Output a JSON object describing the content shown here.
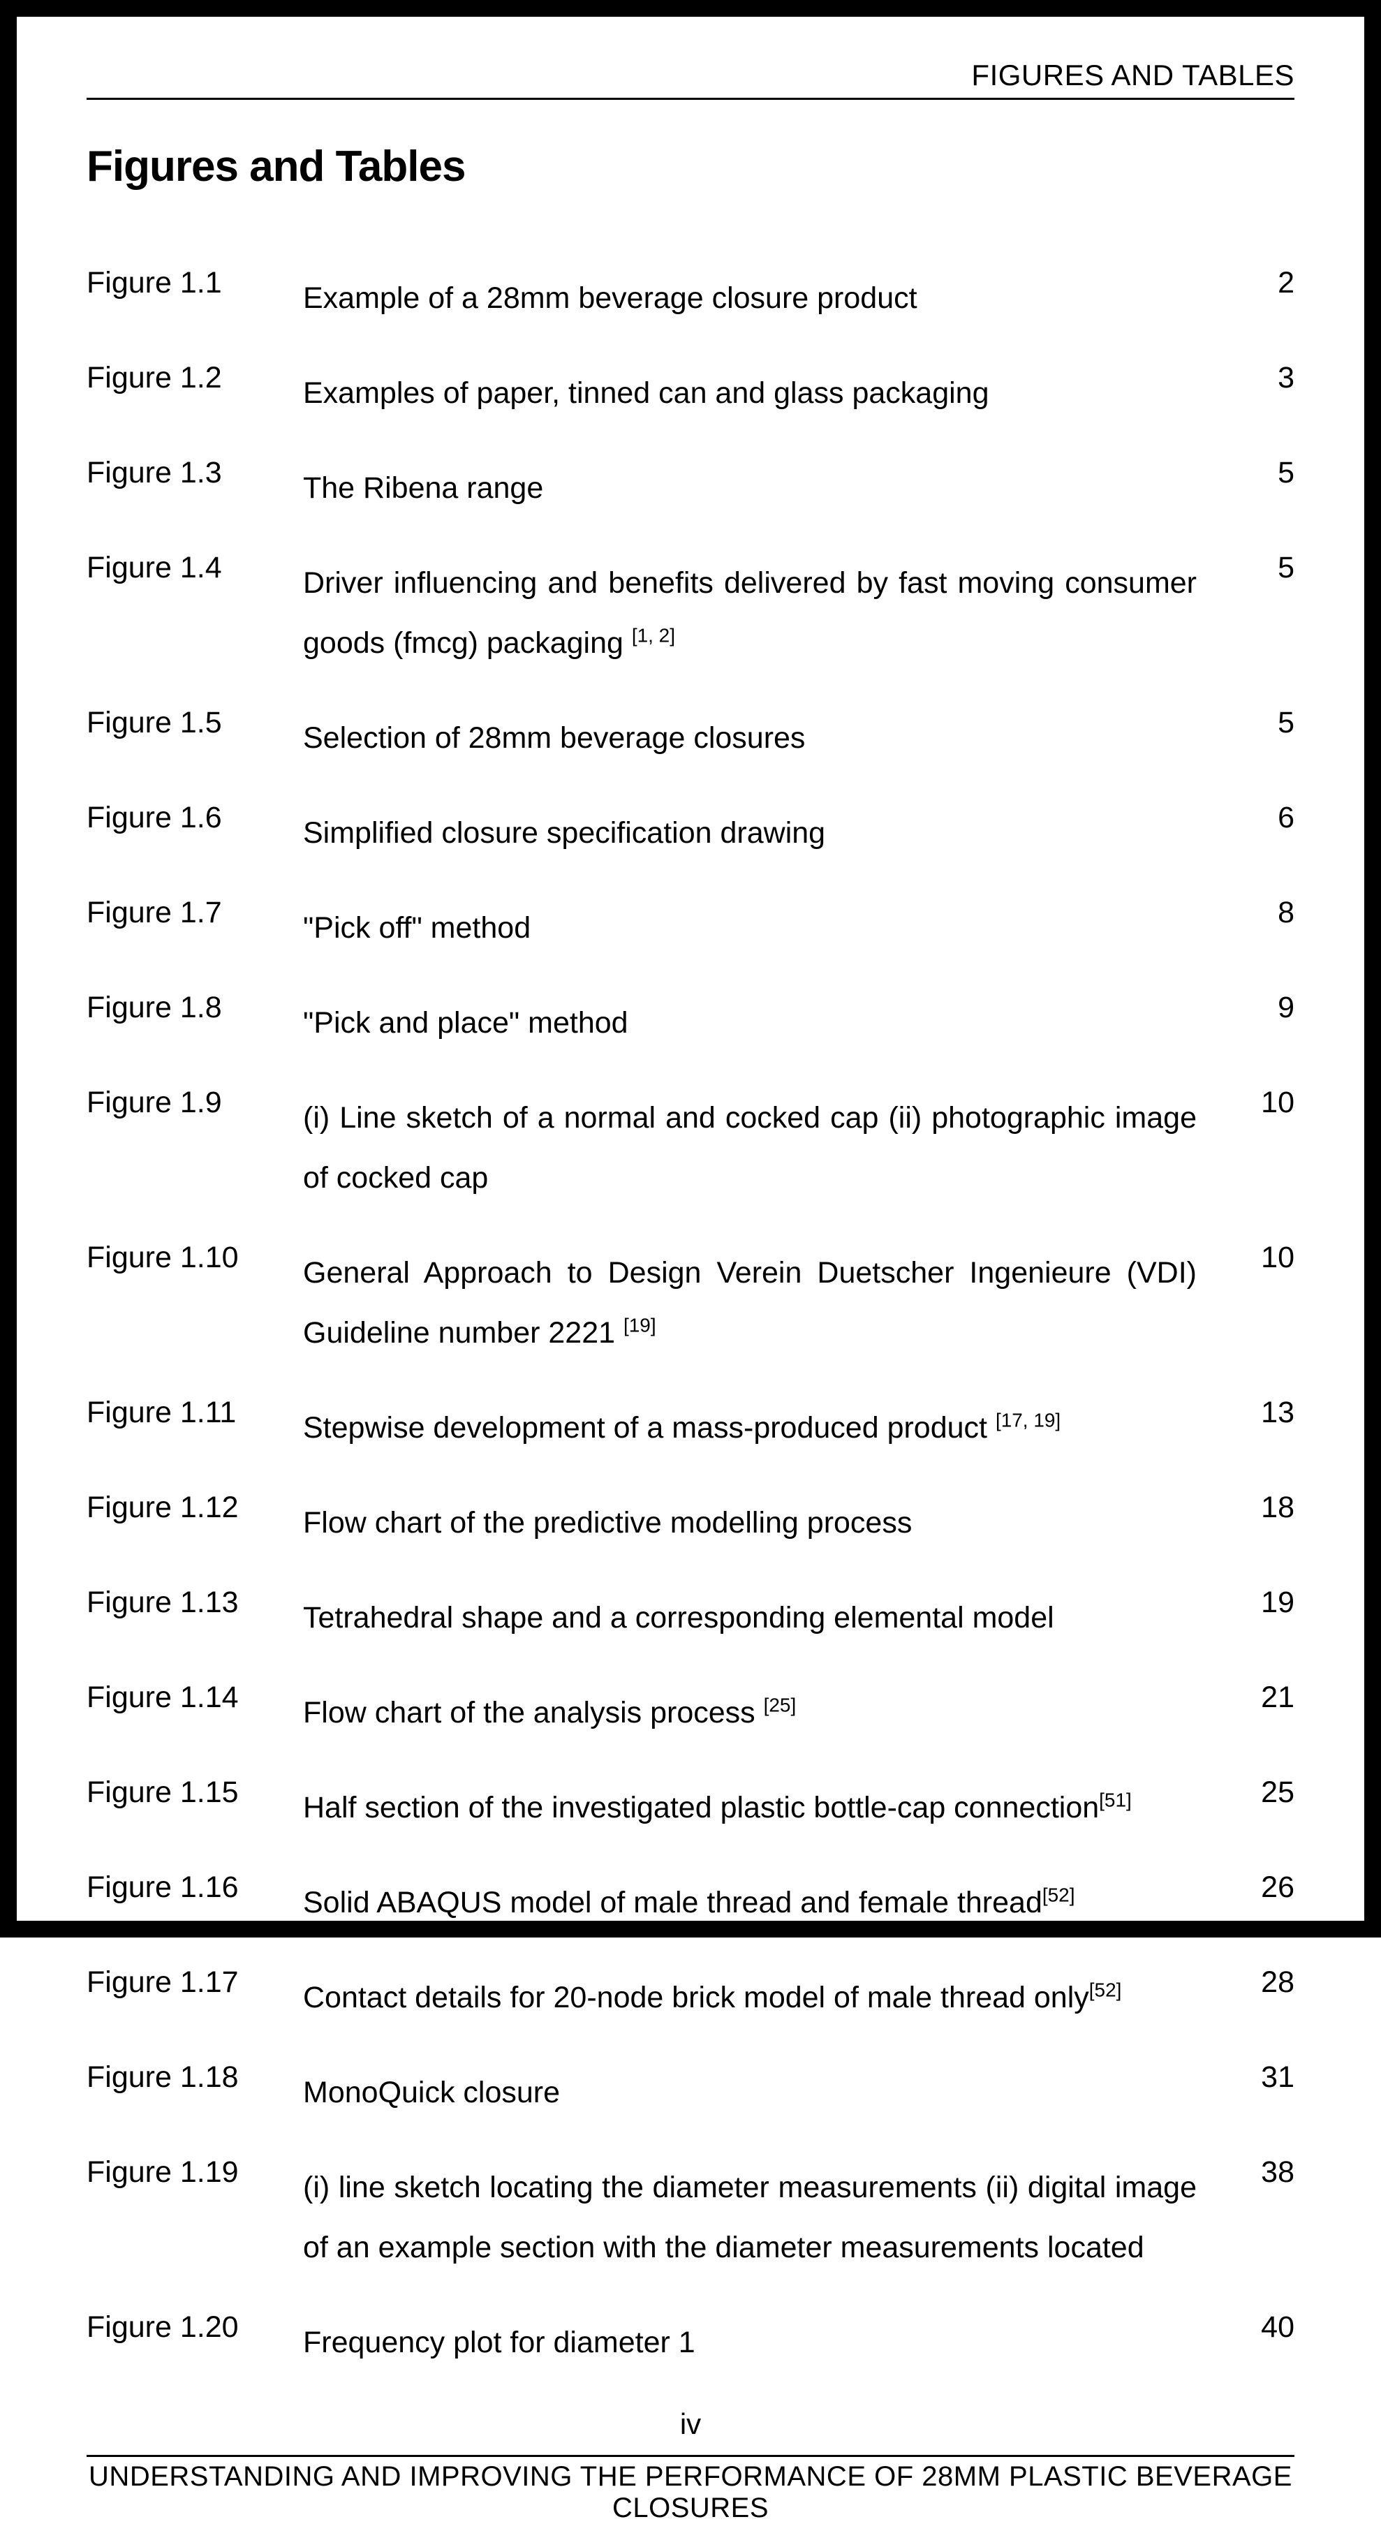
{
  "header": {
    "running": "FIGURES AND TABLES",
    "title": "Figures and Tables"
  },
  "footer": {
    "roman": "iv",
    "text": "UNDERSTANDING AND IMPROVING THE PERFORMANCE OF 28MM PLASTIC BEVERAGE CLOSURES"
  },
  "entries": [
    {
      "label": "Figure 1.1",
      "desc": "Example of a 28mm beverage closure product",
      "page": "2",
      "justify": false
    },
    {
      "label": "Figure 1.2",
      "desc": "Examples of paper, tinned can and glass packaging",
      "page": "3",
      "justify": false
    },
    {
      "label": "Figure 1.3",
      "desc": "The Ribena range",
      "page": "5",
      "justify": false
    },
    {
      "label": "Figure 1.4",
      "desc": "Driver influencing and benefits delivered by fast moving consumer goods (fmcg) packaging <sup>[1, 2]</sup>",
      "page": "5",
      "justify": true
    },
    {
      "label": "Figure 1.5",
      "desc": "Selection of 28mm beverage closures",
      "page": "5",
      "justify": false
    },
    {
      "label": "Figure 1.6",
      "desc": "Simplified closure specification drawing",
      "page": "6",
      "justify": false
    },
    {
      "label": "Figure 1.7",
      "desc": "\"Pick off\" method",
      "page": "8",
      "justify": false
    },
    {
      "label": "Figure 1.8",
      "desc": "\"Pick and place\" method",
      "page": "9",
      "justify": false
    },
    {
      "label": "Figure 1.9",
      "desc": "(i) Line sketch of a normal and cocked cap (ii) photographic image of cocked cap",
      "page": "10",
      "justify": true
    },
    {
      "label": "Figure 1.10",
      "desc": "General Approach to Design Verein Duetscher Ingenieure (VDI) Guideline number 2221 <sup>[19]</sup>",
      "page": "10",
      "justify": true
    },
    {
      "label": "Figure 1.11",
      "desc": "Stepwise development of a mass-produced product <sup>[17, 19]</sup>",
      "page": "13",
      "justify": false
    },
    {
      "label": "Figure 1.12",
      "desc": "Flow chart of the predictive modelling process",
      "page": "18",
      "justify": false
    },
    {
      "label": "Figure 1.13",
      "desc": "Tetrahedral shape and a corresponding elemental model",
      "page": "19",
      "justify": false
    },
    {
      "label": "Figure 1.14",
      "desc": "Flow chart of the analysis process <sup>[25]</sup>",
      "page": "21",
      "justify": false
    },
    {
      "label": "Figure 1.15",
      "desc": "Half section of the investigated plastic bottle-cap connection<sup>[51]</sup>",
      "page": "25",
      "justify": false
    },
    {
      "label": "Figure 1.16",
      "desc": "Solid ABAQUS model of male thread and female thread<sup>[52]</sup>",
      "page": "26",
      "justify": false
    },
    {
      "label": "Figure 1.17",
      "desc": "Contact details for 20-node brick model of male thread only<sup>[52]</sup>",
      "page": "28",
      "justify": false
    },
    {
      "label": "Figure 1.18",
      "desc": "MonoQuick closure",
      "page": "31",
      "justify": false
    },
    {
      "label": "Figure 1.19",
      "desc": "(i) line sketch locating the diameter measurements (ii) digital image of an example section with the diameter measurements located",
      "page": "38",
      "justify": true
    },
    {
      "label": "Figure 1.20",
      "desc": "Frequency plot for diameter 1",
      "page": "40",
      "justify": false
    }
  ]
}
